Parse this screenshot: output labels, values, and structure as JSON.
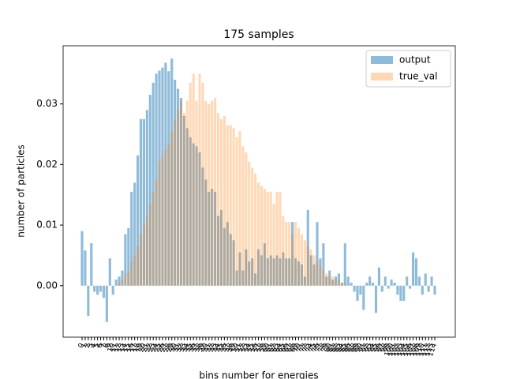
{
  "chart_data": {
    "type": "bar",
    "title": "175 samples",
    "x_label": "bins number for energies",
    "y_label": "number of particles",
    "categories": [
      "0",
      "1",
      "2",
      "3",
      "4",
      "5",
      "6",
      "7",
      "8",
      "9",
      "10",
      "11",
      "12",
      "13",
      "14",
      "15",
      "16",
      "17",
      "18",
      "19",
      "20",
      "21",
      "22",
      "23",
      "24",
      "25",
      "26",
      "27",
      "28",
      "29",
      "30",
      "31",
      "32",
      "33",
      "34",
      "35",
      "36",
      "37",
      "38",
      "39",
      "40",
      "41",
      "42",
      "43",
      "44",
      "45",
      "46",
      "47",
      "48",
      "49",
      "50",
      "51",
      "52",
      "53",
      "54",
      "55",
      "56",
      "57",
      "58",
      "59",
      "60",
      "61",
      "62",
      "63",
      "64",
      "65",
      "66",
      "67",
      "68",
      "69",
      "70",
      "71",
      "72",
      "73",
      "74",
      "75",
      "76",
      "77",
      "78",
      "79",
      "80",
      "81",
      "82",
      "83",
      "84",
      "85",
      "86",
      "87",
      "88",
      "89",
      "90",
      "91",
      "92",
      "93",
      "94",
      "95",
      "96",
      "97",
      "98",
      "99",
      "100",
      "101",
      "102",
      "103",
      "104",
      "105",
      "106",
      "107",
      "108",
      "109",
      "110",
      "111",
      "112",
      "113",
      "114"
    ],
    "series": [
      {
        "name": "output",
        "color": "#1f77b4",
        "opacity": 0.5,
        "values": [
          0.009,
          0.0058,
          -0.005,
          0.007,
          -0.001,
          -0.0015,
          -0.001,
          -0.002,
          -0.006,
          0.0045,
          -0.0015,
          0.001,
          0.0015,
          0.0025,
          0.0085,
          0.0095,
          0.0155,
          0.017,
          0.0215,
          0.0275,
          0.0275,
          0.029,
          0.0315,
          0.0335,
          0.035,
          0.0355,
          0.036,
          0.0368,
          0.0354,
          0.0375,
          0.034,
          0.0325,
          0.031,
          0.028,
          0.026,
          0.0245,
          0.0235,
          0.023,
          0.022,
          0.0195,
          0.0175,
          0.0155,
          0.016,
          0.0155,
          0.0115,
          0.0125,
          0.0095,
          0.0105,
          0.0085,
          0.0075,
          0.0025,
          0.0055,
          0.0025,
          0.006,
          0.004,
          0.0045,
          0.002,
          0.006,
          0.005,
          0.007,
          0.0045,
          0.005,
          0.0045,
          0.005,
          0.0045,
          0.0055,
          0.0045,
          0.0045,
          0.0105,
          0.0045,
          0.004,
          0.0035,
          0.0015,
          0.0125,
          0.005,
          0.0035,
          0.0105,
          0.0045,
          0.007,
          0.0015,
          0.0025,
          0.001,
          0.0015,
          0.002,
          0.0005,
          0.007,
          0.0015,
          0.0005,
          -0.001,
          -0.0025,
          -0.0015,
          -0.004,
          0.0005,
          0.0015,
          0.0005,
          -0.0045,
          0.003,
          -0.001,
          0.0015,
          -0.0005,
          0.001,
          0.0005,
          -0.0015,
          -0.0025,
          -0.0025,
          0.0015,
          -0.0005,
          0.0055,
          0.0045,
          0.0015,
          -0.0015,
          0.002,
          -0.001,
          0.0015,
          -0.0015
        ]
      },
      {
        "name": "true_val",
        "color": "#ff7f0e",
        "opacity": 0.3,
        "values": [
          0,
          0,
          0,
          0,
          0,
          0,
          0,
          0,
          0,
          0,
          0,
          0,
          0.0005,
          0.001,
          0.002,
          0.0022,
          0.004,
          0.005,
          0.0065,
          0.0085,
          0.01,
          0.0115,
          0.0135,
          0.0155,
          0.0175,
          0.0205,
          0.0215,
          0.0225,
          0.0235,
          0.0255,
          0.0275,
          0.029,
          0.0305,
          0.0285,
          0.0305,
          0.0335,
          0.035,
          0.0305,
          0.035,
          0.0335,
          0.0305,
          0.03,
          0.0305,
          0.031,
          0.0285,
          0.0275,
          0.028,
          0.0265,
          0.0265,
          0.026,
          0.0245,
          0.0255,
          0.023,
          0.022,
          0.0205,
          0.0195,
          0.0185,
          0.017,
          0.0165,
          0.016,
          0.0155,
          0.0155,
          0.0135,
          0.0155,
          0.0155,
          0.0115,
          0.0105,
          0.0105,
          0.0085,
          0.0105,
          0.0095,
          0.0085,
          0.0075,
          0.0065,
          0.006,
          0.005,
          0.004,
          0.0035,
          0.0025,
          0.002,
          0.0015,
          0.0015,
          0.001,
          0.0008,
          0.0005,
          0.0005,
          0,
          0,
          0,
          0,
          0,
          0,
          0,
          0,
          0,
          0,
          0,
          0,
          0,
          0,
          0,
          0,
          0,
          0,
          0,
          0,
          0,
          0,
          0,
          0,
          0,
          0,
          0,
          0,
          0
        ]
      }
    ],
    "ylim": [
      -0.0085,
      0.0396
    ],
    "yticks": [
      {
        "value": 0,
        "label": "0.00"
      },
      0.01,
      0.02,
      0.03
    ],
    "grid": false,
    "legend": "upper right"
  }
}
